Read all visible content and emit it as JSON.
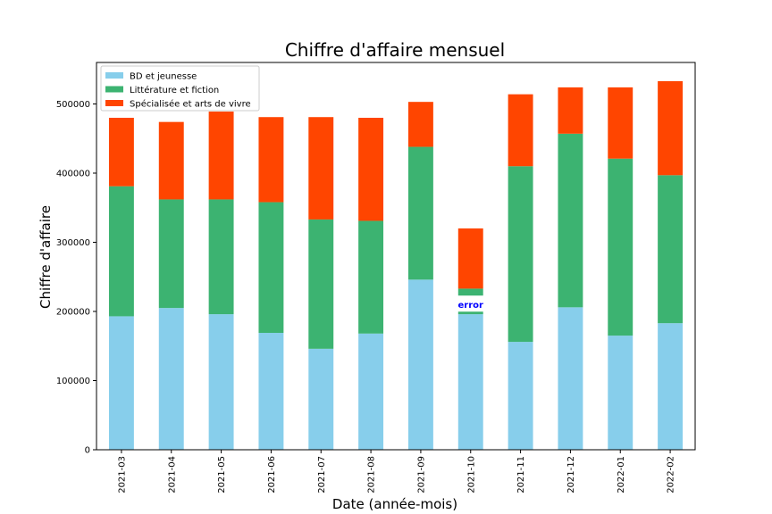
{
  "chart_data": {
    "type": "bar",
    "stacked": true,
    "title": "Chiffre d'affaire mensuel",
    "xlabel": "Date (année-mois)",
    "ylabel": "Chiffre d'affaire",
    "categories": [
      "2021-03",
      "2021-04",
      "2021-05",
      "2021-06",
      "2021-07",
      "2021-08",
      "2021-09",
      "2021-10",
      "2021-11",
      "2021-12",
      "2022-01",
      "2022-02"
    ],
    "ylim": [
      0,
      560000
    ],
    "yticks": [
      0,
      100000,
      200000,
      300000,
      400000,
      500000
    ],
    "ytick_labels": [
      "0",
      "100000",
      "200000",
      "300000",
      "400000",
      "500000"
    ],
    "legend_position": "top-left",
    "grid": false,
    "series": [
      {
        "name": "BD et jeunesse",
        "color": "#87ceeb",
        "values": [
          193000,
          205000,
          196000,
          169000,
          146000,
          168000,
          246000,
          196000,
          156000,
          206000,
          165000,
          183000
        ]
      },
      {
        "name": "Littérature et fiction",
        "color": "#3cb371",
        "values": [
          188000,
          157000,
          166000,
          189000,
          187000,
          163000,
          192000,
          37000,
          254000,
          251000,
          256000,
          214000
        ]
      },
      {
        "name": "Spécialisée et arts de vivre",
        "color": "#ff4500",
        "values": [
          99000,
          112000,
          127000,
          123000,
          148000,
          149000,
          65000,
          87000,
          104000,
          67000,
          103000,
          136000
        ]
      }
    ],
    "annotations": [
      {
        "text": "error",
        "category": "2021-10",
        "y": 210000,
        "color": "#0000ff",
        "background": "#ffffff"
      }
    ]
  }
}
